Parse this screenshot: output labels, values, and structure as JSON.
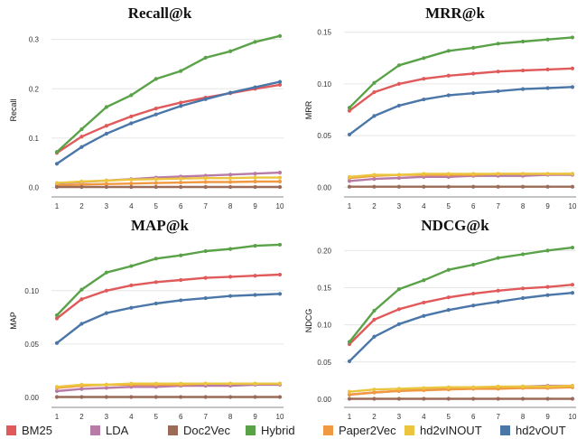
{
  "chart_data": [
    {
      "type": "line",
      "title": "Recall@k",
      "ylabel": "Recall",
      "x": [
        1,
        2,
        3,
        4,
        5,
        6,
        7,
        8,
        9,
        10
      ],
      "ylim": [
        -0.01,
        0.325
      ],
      "yticks": [
        0.0,
        0.1,
        0.2,
        0.3
      ],
      "ytick_labels": [
        "0.0",
        "0.1",
        "0.2",
        "0.3"
      ],
      "series": [
        {
          "name": "BM25",
          "values": [
            0.07,
            0.103,
            0.125,
            0.144,
            0.16,
            0.172,
            0.182,
            0.191,
            0.2,
            0.208
          ]
        },
        {
          "name": "LDA",
          "values": [
            0.008,
            0.011,
            0.014,
            0.017,
            0.02,
            0.022,
            0.024,
            0.026,
            0.028,
            0.03
          ]
        },
        {
          "name": "Doc2Vec",
          "values": [
            0.001,
            0.001,
            0.001,
            0.001,
            0.001,
            0.001,
            0.001,
            0.001,
            0.001,
            0.001
          ]
        },
        {
          "name": "Hybrid",
          "values": [
            0.072,
            0.118,
            0.163,
            0.187,
            0.22,
            0.236,
            0.263,
            0.276,
            0.295,
            0.307
          ]
        },
        {
          "name": "Paper2Vec",
          "values": [
            0.004,
            0.006,
            0.007,
            0.008,
            0.009,
            0.01,
            0.011,
            0.011,
            0.012,
            0.012
          ]
        },
        {
          "name": "hd2vINOUT",
          "values": [
            0.009,
            0.012,
            0.014,
            0.016,
            0.017,
            0.018,
            0.019,
            0.019,
            0.02,
            0.02
          ]
        },
        {
          "name": "hd2vOUT",
          "values": [
            0.048,
            0.082,
            0.109,
            0.13,
            0.148,
            0.165,
            0.179,
            0.192,
            0.203,
            0.214
          ]
        }
      ]
    },
    {
      "type": "line",
      "title": "MRR@k",
      "ylabel": "MRR",
      "x": [
        1,
        2,
        3,
        4,
        5,
        6,
        7,
        8,
        9,
        10
      ],
      "ylim": [
        -0.005,
        0.155
      ],
      "yticks": [
        0.0,
        0.05,
        0.1,
        0.15
      ],
      "ytick_labels": [
        "0.00",
        "0.05",
        "0.10",
        "0.15"
      ],
      "series": [
        {
          "name": "BM25",
          "values": [
            0.074,
            0.092,
            0.1,
            0.105,
            0.108,
            0.11,
            0.112,
            0.113,
            0.114,
            0.115
          ]
        },
        {
          "name": "LDA",
          "values": [
            0.006,
            0.008,
            0.009,
            0.01,
            0.01,
            0.011,
            0.011,
            0.011,
            0.012,
            0.012
          ]
        },
        {
          "name": "Doc2Vec",
          "values": [
            0.0005,
            0.0005,
            0.0005,
            0.0005,
            0.0005,
            0.0005,
            0.0005,
            0.0005,
            0.0005,
            0.0005
          ]
        },
        {
          "name": "Hybrid",
          "values": [
            0.077,
            0.101,
            0.118,
            0.125,
            0.132,
            0.135,
            0.139,
            0.141,
            0.143,
            0.145
          ]
        },
        {
          "name": "Paper2Vec",
          "values": [
            0.009,
            0.011,
            0.012,
            0.012,
            0.012,
            0.012,
            0.013,
            0.013,
            0.013,
            0.013
          ]
        },
        {
          "name": "hd2vINOUT",
          "values": [
            0.01,
            0.012,
            0.012,
            0.013,
            0.013,
            0.013,
            0.013,
            0.013,
            0.013,
            0.013
          ]
        },
        {
          "name": "hd2vOUT",
          "values": [
            0.051,
            0.069,
            0.079,
            0.085,
            0.089,
            0.091,
            0.093,
            0.095,
            0.096,
            0.097
          ]
        }
      ]
    },
    {
      "type": "line",
      "title": "MAP@k",
      "ylabel": "MAP",
      "x": [
        1,
        2,
        3,
        4,
        5,
        6,
        7,
        8,
        9,
        10
      ],
      "ylim": [
        -0.005,
        0.148
      ],
      "yticks": [
        0.0,
        0.05,
        0.1
      ],
      "ytick_labels": [
        "0.00",
        "0.05",
        "0.10"
      ],
      "series": [
        {
          "name": "BM25",
          "values": [
            0.074,
            0.092,
            0.1,
            0.105,
            0.108,
            0.11,
            0.112,
            0.113,
            0.114,
            0.115
          ]
        },
        {
          "name": "LDA",
          "values": [
            0.006,
            0.008,
            0.009,
            0.01,
            0.01,
            0.011,
            0.011,
            0.011,
            0.012,
            0.012
          ]
        },
        {
          "name": "Doc2Vec",
          "values": [
            0.0005,
            0.0005,
            0.0005,
            0.0005,
            0.0005,
            0.0005,
            0.0005,
            0.0005,
            0.0005,
            0.0005
          ]
        },
        {
          "name": "Hybrid",
          "values": [
            0.077,
            0.101,
            0.117,
            0.123,
            0.13,
            0.133,
            0.137,
            0.139,
            0.142,
            0.143
          ]
        },
        {
          "name": "Paper2Vec",
          "values": [
            0.009,
            0.011,
            0.012,
            0.012,
            0.012,
            0.012,
            0.013,
            0.013,
            0.013,
            0.013
          ]
        },
        {
          "name": "hd2vINOUT",
          "values": [
            0.01,
            0.012,
            0.012,
            0.013,
            0.013,
            0.013,
            0.013,
            0.013,
            0.013,
            0.013
          ]
        },
        {
          "name": "hd2vOUT",
          "values": [
            0.051,
            0.069,
            0.079,
            0.084,
            0.088,
            0.091,
            0.093,
            0.095,
            0.096,
            0.097
          ]
        }
      ]
    },
    {
      "type": "line",
      "title": "NDCG@k",
      "ylabel": "NDCG",
      "x": [
        1,
        2,
        3,
        4,
        5,
        6,
        7,
        8,
        9,
        10
      ],
      "ylim": [
        -0.005,
        0.215
      ],
      "yticks": [
        0.0,
        0.05,
        0.1,
        0.15,
        0.2
      ],
      "ytick_labels": [
        "0.00",
        "0.05",
        "0.10",
        "0.15",
        "0.20"
      ],
      "series": [
        {
          "name": "BM25",
          "values": [
            0.074,
            0.107,
            0.121,
            0.13,
            0.137,
            0.142,
            0.146,
            0.149,
            0.151,
            0.154
          ]
        },
        {
          "name": "LDA",
          "values": [
            0.006,
            0.009,
            0.011,
            0.013,
            0.014,
            0.015,
            0.016,
            0.017,
            0.018,
            0.018
          ]
        },
        {
          "name": "Doc2Vec",
          "values": [
            0.0005,
            0.0005,
            0.0005,
            0.0005,
            0.0005,
            0.0005,
            0.0005,
            0.0005,
            0.0005,
            0.0005
          ]
        },
        {
          "name": "Hybrid",
          "values": [
            0.077,
            0.119,
            0.148,
            0.16,
            0.174,
            0.181,
            0.19,
            0.195,
            0.2,
            0.204
          ]
        },
        {
          "name": "Paper2Vec",
          "values": [
            0.006,
            0.009,
            0.011,
            0.012,
            0.013,
            0.014,
            0.014,
            0.015,
            0.015,
            0.016
          ]
        },
        {
          "name": "hd2vINOUT",
          "values": [
            0.01,
            0.013,
            0.014,
            0.015,
            0.016,
            0.016,
            0.017,
            0.017,
            0.017,
            0.018
          ]
        },
        {
          "name": "hd2vOUT",
          "values": [
            0.051,
            0.084,
            0.101,
            0.112,
            0.12,
            0.126,
            0.131,
            0.136,
            0.14,
            0.143
          ]
        }
      ]
    }
  ],
  "legend": {
    "placement": "bottom",
    "items": [
      {
        "name": "BM25",
        "color": "#e05a5b"
      },
      {
        "name": "LDA",
        "color": "#b87aa6"
      },
      {
        "name": "Doc2Vec",
        "color": "#9b6b57"
      },
      {
        "name": "Hybrid",
        "color": "#5aa248"
      },
      {
        "name": "Paper2Vec",
        "color": "#f19940"
      },
      {
        "name": "hd2vINOUT",
        "color": "#ecc53e"
      },
      {
        "name": "hd2vOUT",
        "color": "#4a76a8"
      }
    ]
  },
  "series_colors": {
    "BM25": "#e05a5b",
    "LDA": "#b87aa6",
    "Doc2Vec": "#9b6b57",
    "Hybrid": "#5aa248",
    "Paper2Vec": "#f19940",
    "hd2vINOUT": "#ecc53e",
    "hd2vOUT": "#4a76a8"
  },
  "draw_order": [
    "BM25",
    "LDA",
    "Paper2Vec",
    "hd2vINOUT",
    "hd2vOUT",
    "Hybrid",
    "Doc2Vec"
  ]
}
